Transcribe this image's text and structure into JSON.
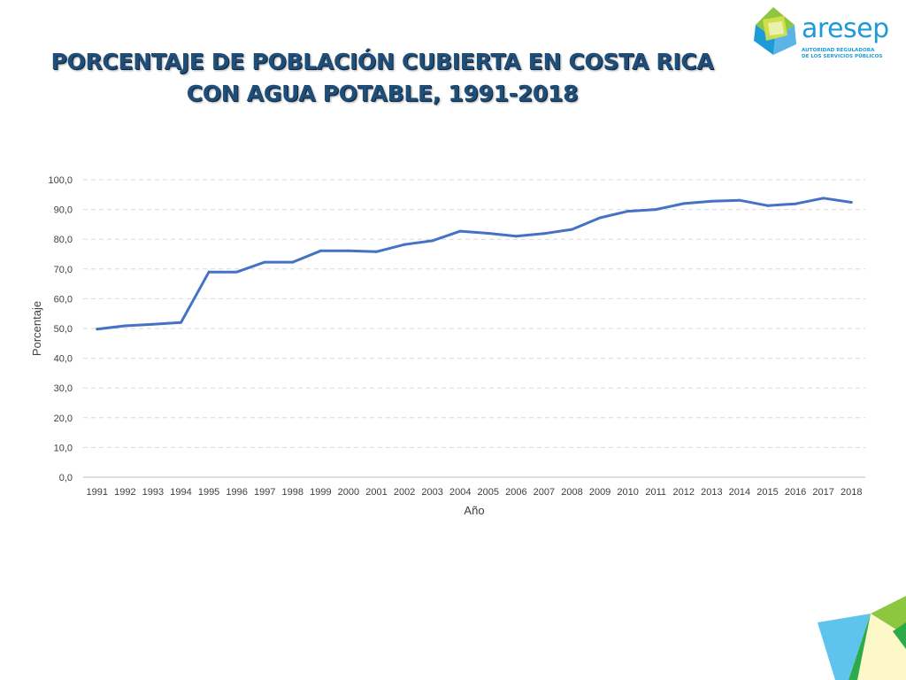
{
  "title": "PORCENTAJE DE POBLACIÓN CUBIERTA EN COSTA RICA CON AGUA POTABLE, 1991-2018",
  "logo": {
    "name": "aresep",
    "tagline_line1": "AUTORIDAD REGULADORA",
    "tagline_line2": "DE LOS SERVICIOS PÚBLICOS"
  },
  "colors": {
    "title": "#1f4e79",
    "series": "#4472c4",
    "grid": "#d9d9d9",
    "logo_blue": "#1e9bd7",
    "logo_green": "#8dc63f",
    "logo_yellow": "#d7e14a"
  },
  "chart_data": {
    "type": "line",
    "xlabel": "Año",
    "ylabel": "Porcentaje",
    "ylim": [
      0,
      100
    ],
    "ytick_labels": [
      "0,0",
      "10,0",
      "20,0",
      "30,0",
      "40,0",
      "50,0",
      "60,0",
      "70,0",
      "80,0",
      "90,0",
      "100,0"
    ],
    "grid": "horizontal dashed",
    "legend": "none",
    "categories": [
      "1991",
      "1992",
      "1993",
      "1994",
      "1995",
      "1996",
      "1997",
      "1998",
      "1999",
      "2000",
      "2001",
      "2002",
      "2003",
      "2004",
      "2005",
      "2006",
      "2007",
      "2008",
      "2009",
      "2010",
      "2011",
      "2012",
      "2013",
      "2014",
      "2015",
      "2016",
      "2017",
      "2018"
    ],
    "series": [
      {
        "values": [
          49.8,
          50.9,
          51.4,
          52.0,
          69.0,
          69.0,
          72.3,
          72.3,
          76.1,
          76.1,
          75.8,
          78.2,
          79.5,
          82.7,
          82.0,
          81.0,
          81.9,
          83.3,
          87.2,
          89.4,
          90.0,
          92.0,
          92.8,
          93.1,
          91.3,
          91.9,
          93.8,
          92.4
        ]
      }
    ]
  }
}
